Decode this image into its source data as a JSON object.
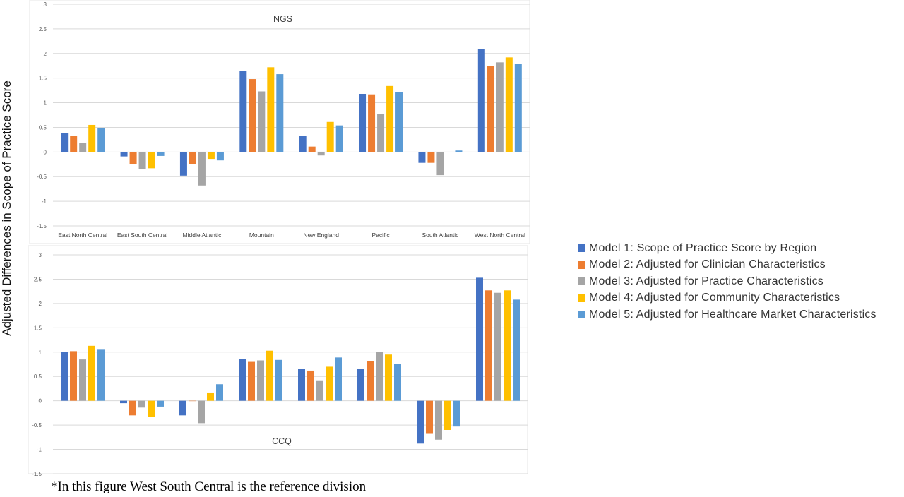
{
  "y_axis_label": "Adjusted Differences in Scope of Practice Score",
  "footnote": "*In this figure West South Central is the reference division",
  "colors": [
    "#4472C4",
    "#ED7D31",
    "#A5A5A5",
    "#FFC000",
    "#5B9BD5"
  ],
  "legend": [
    "Model 1: Scope of Practice Score by Region",
    "Model 2: Adjusted for Clinician Characteristics",
    "Model 3: Adjusted for Practice Characteristics",
    "Model 4: Adjusted for Community Characteristics",
    "Model 5: Adjusted for Healthcare Market Characteristics"
  ],
  "chart_data": [
    {
      "type": "bar",
      "title": "NGS",
      "ylim": [
        -1.5,
        3
      ],
      "yticks": [
        "3",
        "2.5",
        "2",
        "1.5",
        "1",
        "0.5",
        "0",
        "-0.5",
        "-1",
        "-1.5"
      ],
      "grid": true,
      "categories": [
        "East North Central",
        "East South Central",
        "Middle Atlantic",
        "Mountain",
        "New England",
        "Pacific",
        "South Atlantic",
        "West North Central"
      ],
      "series": [
        {
          "name": "Model 1: Scope of Practice Score by Region",
          "values": [
            0.39,
            -0.09,
            -0.48,
            1.65,
            0.33,
            1.18,
            -0.22,
            2.09
          ]
        },
        {
          "name": "Model 2: Adjusted for Clinician Characteristics",
          "values": [
            0.33,
            -0.24,
            -0.24,
            1.48,
            0.11,
            1.17,
            -0.22,
            1.75
          ]
        },
        {
          "name": "Model 3: Adjusted for Practice Characteristics",
          "values": [
            0.18,
            -0.34,
            -0.68,
            1.23,
            -0.07,
            0.77,
            -0.47,
            1.82
          ]
        },
        {
          "name": "Model 4: Adjusted for Community Characteristics",
          "values": [
            0.55,
            -0.33,
            -0.14,
            1.72,
            0.61,
            1.34,
            0.0,
            1.92
          ]
        },
        {
          "name": "Model 5: Adjusted for Healthcare Market Characteristics",
          "values": [
            0.48,
            -0.08,
            -0.17,
            1.58,
            0.54,
            1.21,
            0.03,
            1.79
          ]
        }
      ]
    },
    {
      "type": "bar",
      "title": "CCQ",
      "ylim": [
        -1.5,
        3
      ],
      "yticks": [
        "3",
        "2.5",
        "2",
        "1.5",
        "1",
        "0.5",
        "0",
        "-0.5",
        "-1",
        "-1.5"
      ],
      "grid": true,
      "categories": [
        "East North Central",
        "East South Central",
        "Middle Atlantic",
        "Mountain",
        "New England",
        "Pacific",
        "South Atlantic",
        "West North Central"
      ],
      "series": [
        {
          "name": "Model 1: Scope of Practice Score by Region",
          "values": [
            1.01,
            -0.05,
            -0.3,
            0.86,
            0.66,
            0.65,
            -0.88,
            2.53
          ]
        },
        {
          "name": "Model 2: Adjusted for Clinician Characteristics",
          "values": [
            1.02,
            -0.3,
            0.0,
            0.8,
            0.62,
            0.82,
            -0.68,
            2.27
          ]
        },
        {
          "name": "Model 3: Adjusted for Practice Characteristics",
          "values": [
            0.85,
            -0.14,
            -0.46,
            0.83,
            0.42,
            1.0,
            -0.8,
            2.22
          ]
        },
        {
          "name": "Model 4: Adjusted for Community Characteristics",
          "values": [
            1.13,
            -0.33,
            0.17,
            1.03,
            0.7,
            0.95,
            -0.6,
            2.27
          ]
        },
        {
          "name": "Model 5: Adjusted for Healthcare Market Characteristics",
          "values": [
            1.05,
            -0.12,
            0.34,
            0.84,
            0.89,
            0.76,
            -0.53,
            2.08
          ]
        }
      ]
    }
  ]
}
